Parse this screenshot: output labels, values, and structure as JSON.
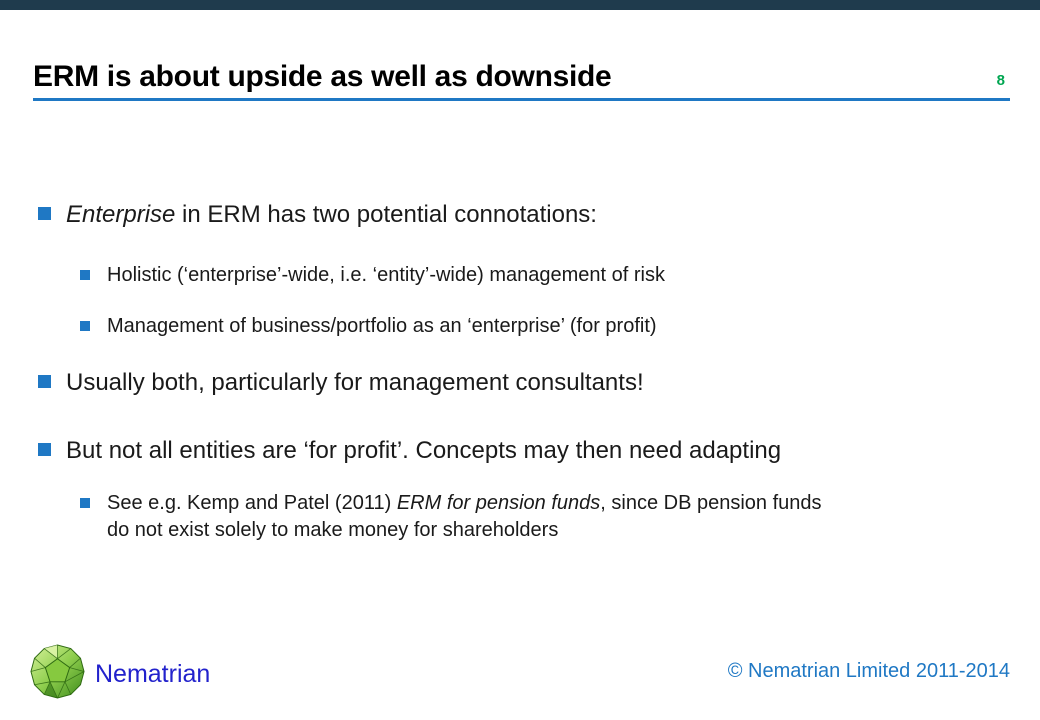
{
  "header": {
    "title": "ERM is about upside as well as downside",
    "page_number": "8"
  },
  "bullets": [
    {
      "level": 1,
      "segments": [
        {
          "text": "Enterprise",
          "italic": true
        },
        {
          "text": " in ERM has two potential connotations:"
        }
      ]
    },
    {
      "level": 2,
      "segments": [
        {
          "text": "Holistic (‘enterprise’-wide, i.e. ‘entity’-wide) management of risk"
        }
      ]
    },
    {
      "level": 2,
      "segments": [
        {
          "text": "Management of business/portfolio as an ‘enterprise’ (for profit)"
        }
      ]
    },
    {
      "level": 1,
      "segments": [
        {
          "text": "Usually both, particularly for management consultants!"
        }
      ]
    },
    {
      "level": 1,
      "segments": [
        {
          "text": "But not all entities are ‘for profit’. Concepts may then need adapting"
        }
      ]
    },
    {
      "level": 2,
      "segments": [
        {
          "text": "See e.g. Kemp and Patel (2011) "
        },
        {
          "text": "ERM for pension funds",
          "italic": true
        },
        {
          "text": ", since DB pension funds"
        },
        {
          "break": true
        },
        {
          "text": "do not exist solely to make money for shareholders"
        }
      ]
    }
  ],
  "footer": {
    "brand_name": "Nematrian",
    "logo_icon": "nematrian-polyhedron-logo",
    "copyright": "© Nematrian Limited 2011-2014"
  },
  "theme": {
    "accent_blue": "#1f78c4",
    "page_number_green": "#00a651",
    "brand_blue": "#2222cc",
    "footer_blue": "#1f78c4",
    "topbar_color": "#1f3b4d",
    "text_color": "#1a1a1a"
  }
}
